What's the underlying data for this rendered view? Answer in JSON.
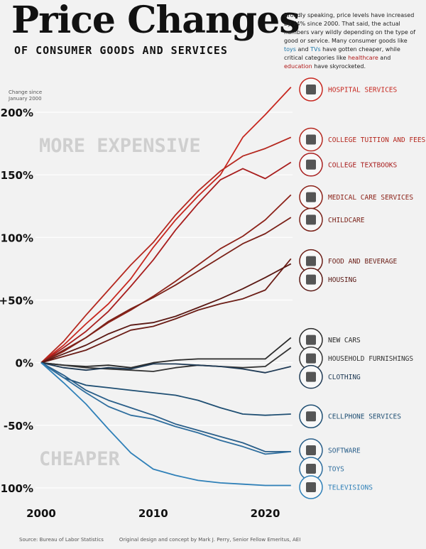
{
  "header": {
    "title": "Price Changes",
    "subtitle": "OF CONSUMER GOODS AND SERVICES",
    "intro_parts": {
      "p1": "Broadly speaking, price levels have increased by 74% since 2000. That said, the actual numbers vary wildly depending on the type of good or service. Many consumer goods like ",
      "toys": "toys",
      "p2": " and ",
      "tvs": "TVs",
      "p3": " have gotten cheaper, while critical categories like ",
      "healthcare": "healthcare",
      "p4": " and ",
      "education": "education",
      "p5": " have skyrocketed."
    }
  },
  "footer": {
    "source": "Source: Bureau of Labor Statistics",
    "credit": "Original design and concept by Mark J. Perry, Senior Fellow Emeritus, AEI"
  },
  "annotations": {
    "change_since_line1": "Change since",
    "change_since_line2": "January 2000",
    "more_expensive": "MORE EXPENSIVE",
    "cheaper": "CHEAPER"
  },
  "colors": {
    "background": "#f2f2f2",
    "gridline": "#ffffff",
    "red_high": "#c7271f",
    "red_dark": "#7a2118",
    "near_black": "#2a2a2a",
    "blue_dark": "#1f4f73",
    "blue": "#2f6e9e",
    "blue_light": "#2f80b8"
  },
  "chart_data": {
    "type": "line",
    "title": "Price Changes",
    "subtitle": "OF CONSUMER GOODS AND SERVICES",
    "xlabel": "",
    "ylabel": "Change since January 2000",
    "xlim": [
      2000,
      2022.5
    ],
    "ylim": [
      -100,
      200
    ],
    "x_ticks": [
      2000,
      2010,
      2020
    ],
    "x_tick_labels": [
      "2000",
      "2010",
      "2020"
    ],
    "y_ticks": [
      200,
      150,
      100,
      50,
      0,
      -50,
      -100
    ],
    "y_tick_labels": [
      "+200%",
      "+150%",
      "+100%",
      "+50%",
      "0%",
      "-50%",
      "-100%"
    ],
    "grid": true,
    "x": [
      2000,
      2002,
      2004,
      2006,
      2008,
      2010,
      2012,
      2014,
      2016,
      2018,
      2020,
      2022.3
    ],
    "series": [
      {
        "name": "HOSPITAL SERVICES",
        "values": [
          0,
          14,
          31,
          47,
          67,
          92,
          114,
          133,
          150,
          180,
          198,
          220
        ],
        "color": "#c7271f",
        "icon": "hospital-icon"
      },
      {
        "name": "COLLEGE TUITION AND FEES",
        "values": [
          0,
          17,
          38,
          58,
          78,
          96,
          118,
          137,
          153,
          165,
          171,
          180
        ],
        "color": "#b5281f",
        "icon": "graduation-cap-icon"
      },
      {
        "name": "COLLEGE TEXTBOOKS",
        "values": [
          0,
          12,
          25,
          41,
          61,
          82,
          106,
          127,
          146,
          155,
          147,
          160
        ],
        "color": "#a81e1e",
        "icon": "book-icon"
      },
      {
        "name": "MEDICAL CARE SERVICES",
        "values": [
          0,
          9,
          20,
          32,
          42,
          53,
          65,
          78,
          91,
          101,
          114,
          134
        ],
        "color": "#8c2219",
        "icon": "first-aid-kit-icon"
      },
      {
        "name": "CHILDCARE",
        "values": [
          0,
          10,
          20,
          33,
          43,
          52,
          62,
          73,
          84,
          95,
          103,
          116
        ],
        "color": "#7a2118",
        "icon": "stroller-icon"
      },
      {
        "name": "FOOD AND BEVERAGE",
        "values": [
          0,
          5,
          10,
          18,
          26,
          29,
          35,
          42,
          47,
          51,
          58,
          83
        ],
        "color": "#6b1d16",
        "icon": "food-icon"
      },
      {
        "name": "HOUSING",
        "values": [
          0,
          7,
          14,
          23,
          30,
          32,
          37,
          44,
          51,
          59,
          68,
          79
        ],
        "color": "#5a1813",
        "icon": "house-icon"
      },
      {
        "name": "NEW CARS",
        "values": [
          0,
          -2,
          -3,
          -2,
          -4,
          0,
          2,
          3,
          3,
          3,
          3,
          20
        ],
        "color": "#2a2a2a",
        "icon": "car-icon"
      },
      {
        "name": "HOUSEHOLD FURNISHINGS",
        "values": [
          0,
          -2,
          -4,
          -5,
          -6,
          -7,
          -4,
          -2,
          -3,
          -4,
          -3,
          12
        ],
        "color": "#333333",
        "icon": "sofa-icon"
      },
      {
        "name": "CLOTHING",
        "values": [
          0,
          -4,
          -6,
          -4,
          -5,
          -1,
          -1,
          -2,
          -3,
          -5,
          -8,
          -3
        ],
        "color": "#1f3a55",
        "icon": "shirt-icon"
      },
      {
        "name": "CELLPHONE SERVICES",
        "values": [
          0,
          -12,
          -18,
          -20,
          -22,
          -24,
          -26,
          -30,
          -36,
          -41,
          -42,
          -41
        ],
        "color": "#1f4f73",
        "icon": "cellphone-icon"
      },
      {
        "name": "SOFTWARE",
        "values": [
          0,
          -10,
          -22,
          -30,
          -36,
          -42,
          -49,
          -54,
          -59,
          -64,
          -71,
          -71
        ],
        "color": "#2a5f8a",
        "icon": "software-icon"
      },
      {
        "name": "TOYS",
        "values": [
          0,
          -12,
          -24,
          -35,
          -42,
          -45,
          -51,
          -56,
          -62,
          -67,
          -73,
          -71
        ],
        "color": "#2f6e9e",
        "icon": "toy-icon"
      },
      {
        "name": "TELEVISIONS",
        "values": [
          0,
          -16,
          -33,
          -53,
          -72,
          -85,
          -90,
          -94,
          -96,
          -97,
          -98,
          -98
        ],
        "color": "#2f80b8",
        "icon": "television-icon"
      }
    ]
  }
}
